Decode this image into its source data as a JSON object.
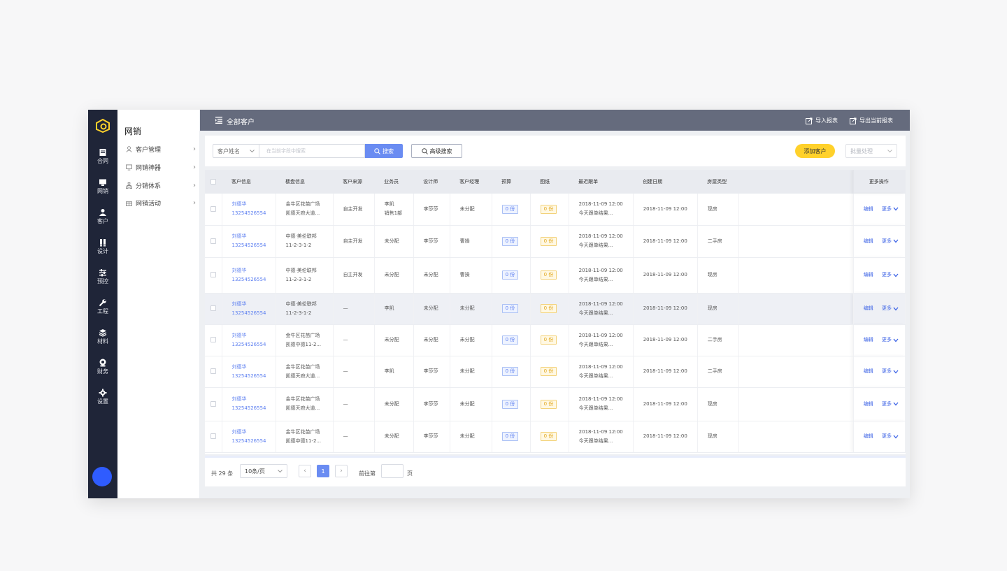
{
  "rail": {
    "items": [
      {
        "label": "合同",
        "icon": "contract-icon"
      },
      {
        "label": "网销",
        "icon": "online-sales-icon"
      },
      {
        "label": "客户",
        "icon": "customer-icon"
      },
      {
        "label": "设计",
        "icon": "design-icon"
      },
      {
        "label": "预控",
        "icon": "budget-control-icon"
      },
      {
        "label": "工程",
        "icon": "wrench-icon"
      },
      {
        "label": "材料",
        "icon": "layers-icon"
      },
      {
        "label": "财务",
        "icon": "finance-icon"
      },
      {
        "label": "设置",
        "icon": "gear-icon"
      }
    ],
    "accent": "#ffd12b",
    "avatar_color": "#2f5cff"
  },
  "subnav": {
    "title": "网销",
    "items": [
      {
        "label": "客户管理",
        "icon": "user-icon"
      },
      {
        "label": "网销神器",
        "icon": "monitor-icon"
      },
      {
        "label": "分销体系",
        "icon": "hierarchy-icon"
      },
      {
        "label": "网销活动",
        "icon": "gift-icon"
      }
    ]
  },
  "topbar": {
    "title": "全部客户",
    "import_label": "导入报表",
    "export_label": "导出当前报表"
  },
  "search": {
    "field_label": "客户姓名",
    "placeholder": "在当前字段中搜索",
    "search_label": "搜索",
    "advanced_label": "高级搜索",
    "add_label": "添加客户",
    "batch_label": "批量处理"
  },
  "table": {
    "headers": [
      "客户信息",
      "楼盘信息",
      "客户来源",
      "业务员",
      "设计师",
      "客户经理",
      "预算",
      "图纸",
      "最近跟单",
      "创建日期",
      "房屋类型",
      "",
      "更多操作"
    ],
    "edit_label": "编辑",
    "more_label": "更多",
    "rows": [
      {
        "name": "刘德华",
        "phone": "13254526554",
        "estate1": "金牛区花苗广场",
        "estate2": "凯德天府大道...",
        "source": "自主开发",
        "sales1": "李凯",
        "sales2": "销售1部",
        "designer": "李莎莎",
        "manager": "未分配",
        "budget": "0 份",
        "drawing": "0 份",
        "follow1": "2018-11-09 12:00",
        "follow2": "今天跟单结果...",
        "created": "2018-11-09 12:00",
        "house": "现房"
      },
      {
        "name": "刘德华",
        "phone": "13254526554",
        "estate1": "中德·美伦联邦",
        "estate2": "11-2-3-1-2",
        "source": "自主开发",
        "sales1": "未分配",
        "sales2": "",
        "designer": "李莎莎",
        "manager": "曹操",
        "budget": "0 份",
        "drawing": "0 份",
        "follow1": "2018-11-09 12:00",
        "follow2": "今天跟单结果...",
        "created": "2018-11-09 12:00",
        "house": "二手房"
      },
      {
        "name": "刘德华",
        "phone": "13254526554",
        "estate1": "中德·美伦联邦",
        "estate2": "11-2-3-1-2",
        "source": "自主开发",
        "sales1": "未分配",
        "sales2": "",
        "designer": "未分配",
        "manager": "曹操",
        "budget": "0 份",
        "drawing": "0 份",
        "follow1": "2018-11-09 12:00",
        "follow2": "今天跟单结果...",
        "created": "2018-11-09 12:00",
        "house": "现房"
      },
      {
        "name": "刘德华",
        "phone": "13254526554",
        "estate1": "中德·美伦联邦",
        "estate2": "11-2-3-1-2",
        "source": "—",
        "sales1": "李凯",
        "sales2": "",
        "designer": "未分配",
        "manager": "未分配",
        "budget": "0 份",
        "drawing": "0 份",
        "follow1": "2018-11-09 12:00",
        "follow2": "今天跟单结果...",
        "created": "2018-11-09 12:00",
        "house": "现房"
      },
      {
        "name": "刘德华",
        "phone": "13254526554",
        "estate1": "金牛区花苗广场",
        "estate2": "凯德中德11-2...",
        "source": "—",
        "sales1": "未分配",
        "sales2": "",
        "designer": "未分配",
        "manager": "未分配",
        "budget": "0 份",
        "drawing": "0 份",
        "follow1": "2018-11-09 12:00",
        "follow2": "今天跟单结果...",
        "created": "2018-11-09 12:00",
        "house": "二手房"
      },
      {
        "name": "刘德华",
        "phone": "13254526554",
        "estate1": "金牛区花苗广场",
        "estate2": "凯德天府大道...",
        "source": "—",
        "sales1": "李凯",
        "sales2": "",
        "designer": "李莎莎",
        "manager": "未分配",
        "budget": "0 份",
        "drawing": "0 份",
        "follow1": "2018-11-09 12:00",
        "follow2": "今天跟单结果...",
        "created": "2018-11-09 12:00",
        "house": "二手房"
      },
      {
        "name": "刘德华",
        "phone": "13254526554",
        "estate1": "金牛区花苗广场",
        "estate2": "凯德天府大道...",
        "source": "—",
        "sales1": "未分配",
        "sales2": "",
        "designer": "李莎莎",
        "manager": "未分配",
        "budget": "0 份",
        "drawing": "0 份",
        "follow1": "2018-11-09 12:00",
        "follow2": "今天跟单结果...",
        "created": "2018-11-09 12:00",
        "house": "现房"
      },
      {
        "name": "刘德华",
        "phone": "13254526554",
        "estate1": "金牛区花苗广场",
        "estate2": "凯德中德11-2...",
        "source": "—",
        "sales1": "未分配",
        "sales2": "",
        "designer": "李莎莎",
        "manager": "未分配",
        "budget": "0 份",
        "drawing": "0 份",
        "follow1": "2018-11-09 12:00",
        "follow2": "今天跟单结果...",
        "created": "2018-11-09 12:00",
        "house": "现房"
      }
    ]
  },
  "pager": {
    "total": "共 29 条",
    "page_size": "10条/页",
    "current": "1",
    "goto_label": "前往第",
    "page_word": "页"
  }
}
